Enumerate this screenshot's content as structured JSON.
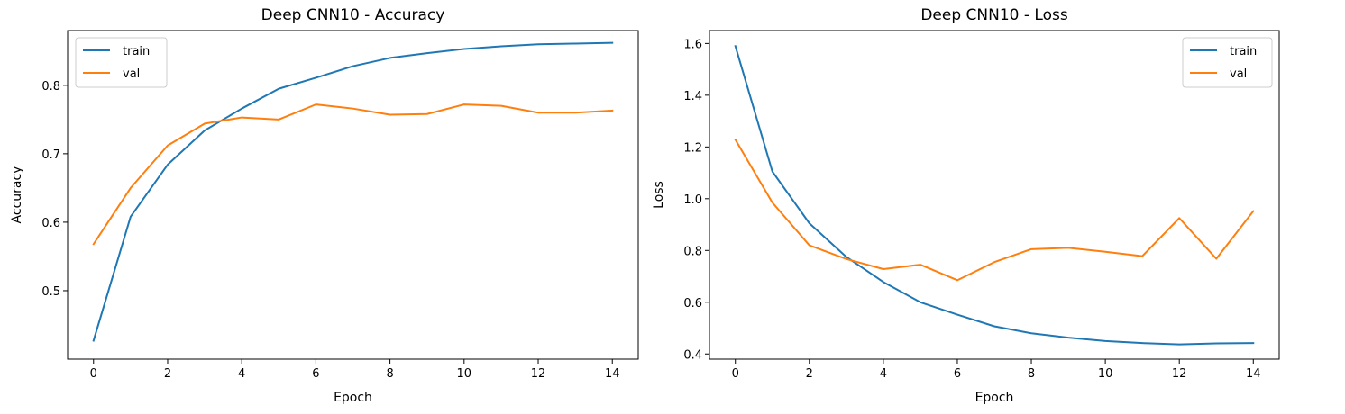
{
  "chart_data": [
    {
      "type": "line",
      "title": "Deep CNN10 - Accuracy",
      "xlabel": "Epoch",
      "ylabel": "Accuracy",
      "xlim": [
        -0.7,
        14.7
      ],
      "ylim": [
        0.4,
        0.88
      ],
      "xticks": [
        0,
        2,
        4,
        6,
        8,
        10,
        12,
        14
      ],
      "yticks": [
        0.5,
        0.6,
        0.7,
        0.8
      ],
      "grid": false,
      "legend_position": "top-left",
      "x": [
        0,
        1,
        2,
        3,
        4,
        5,
        6,
        7,
        8,
        9,
        10,
        11,
        12,
        13,
        14
      ],
      "series": [
        {
          "name": "train",
          "color": "#1f77b4",
          "values": [
            0.427,
            0.608,
            0.684,
            0.734,
            0.766,
            0.795,
            0.811,
            0.828,
            0.84,
            0.847,
            0.853,
            0.857,
            0.86,
            0.861,
            0.862
          ]
        },
        {
          "name": "val",
          "color": "#ff7f0e",
          "values": [
            0.568,
            0.65,
            0.712,
            0.744,
            0.753,
            0.75,
            0.772,
            0.766,
            0.757,
            0.758,
            0.772,
            0.77,
            0.76,
            0.76,
            0.763
          ]
        }
      ]
    },
    {
      "type": "line",
      "title": "Deep CNN10 - Loss",
      "xlabel": "Epoch",
      "ylabel": "Loss",
      "xlim": [
        -0.7,
        14.7
      ],
      "ylim": [
        0.38,
        1.65
      ],
      "xticks": [
        0,
        2,
        4,
        6,
        8,
        10,
        12,
        14
      ],
      "yticks": [
        0.4,
        0.6,
        0.8,
        1.0,
        1.2,
        1.4,
        1.6
      ],
      "grid": false,
      "legend_position": "top-right",
      "x": [
        0,
        1,
        2,
        3,
        4,
        5,
        6,
        7,
        8,
        9,
        10,
        11,
        12,
        13,
        14
      ],
      "series": [
        {
          "name": "train",
          "color": "#1f77b4",
          "values": [
            1.59,
            1.105,
            0.905,
            0.775,
            0.678,
            0.6,
            0.552,
            0.507,
            0.48,
            0.463,
            0.45,
            0.442,
            0.437,
            0.441,
            0.442
          ]
        },
        {
          "name": "val",
          "color": "#ff7f0e",
          "values": [
            1.228,
            0.985,
            0.82,
            0.767,
            0.728,
            0.745,
            0.685,
            0.755,
            0.805,
            0.81,
            0.795,
            0.778,
            0.925,
            0.768,
            0.952
          ]
        }
      ]
    }
  ]
}
